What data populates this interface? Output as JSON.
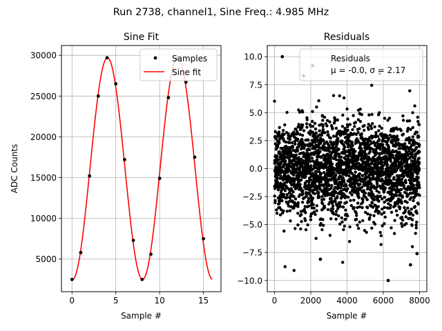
{
  "suptitle": "Run 2738, channel1, Sine Freq.: 4.985 MHz",
  "chart_data": [
    {
      "type": "line",
      "title": "Sine Fit",
      "xlabel": "Sample #",
      "ylabel": "ADC Counts",
      "xlim": [
        -1.2,
        17.0
      ],
      "ylim": [
        1000,
        31200
      ],
      "xticks": [
        0,
        5,
        10,
        15
      ],
      "yticks": [
        5000,
        10000,
        15000,
        20000,
        25000,
        30000
      ],
      "grid": true,
      "legend": {
        "placement": "top-right",
        "entries": [
          "Samples",
          "Sine fit"
        ]
      },
      "series": [
        {
          "name": "Samples",
          "kind": "scatter",
          "color": "#000000",
          "x": [
            0,
            1,
            2,
            3,
            4,
            5,
            6,
            7,
            8,
            9,
            10,
            11,
            12,
            13,
            14,
            15
          ],
          "y": [
            2500,
            5800,
            15200,
            25000,
            29700,
            26500,
            17200,
            7300,
            2500,
            5600,
            14900,
            24800,
            29600,
            26700,
            17500,
            7500
          ]
        },
        {
          "name": "Sine fit",
          "kind": "line",
          "color": "#ff0000",
          "model": {
            "offset": 16100,
            "amplitude": 13600,
            "period": 8.0,
            "peak_x": 4.05
          },
          "x_range": [
            0,
            16
          ]
        }
      ]
    },
    {
      "type": "scatter",
      "title": "Residuals",
      "xlabel": "Sample #",
      "ylabel": "",
      "xlim": [
        -400,
        8400
      ],
      "ylim": [
        -11,
        11
      ],
      "xticks": [
        0,
        2000,
        4000,
        6000,
        8000
      ],
      "yticks": [
        -10.0,
        -7.5,
        -5.0,
        -2.5,
        0.0,
        2.5,
        5.0,
        7.5,
        10.0
      ],
      "grid": true,
      "legend": {
        "placement": "top-right",
        "entries": [
          "Residuals",
          "μ = -0.0, σ = 2.17"
        ]
      },
      "series": [
        {
          "name": "Residuals",
          "color": "#000000",
          "n_points": 8000,
          "mean": 0.0,
          "sigma": 2.17,
          "outliers": [
            [
              430,
              10.0
            ],
            [
              2100,
              9.2
            ],
            [
              6270,
              -10.0
            ],
            [
              7860,
              -7.6
            ],
            [
              2530,
              -8.1
            ],
            [
              5800,
              8.5
            ],
            [
              7500,
              -8.6
            ],
            [
              1600,
              8.3
            ]
          ]
        }
      ]
    }
  ]
}
